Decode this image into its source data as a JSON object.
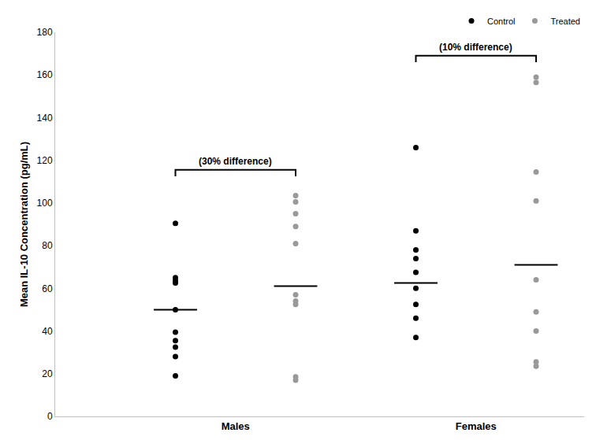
{
  "chart_data": {
    "type": "scatter",
    "y_label": "Mean IL-10 Concentration (pg/mL)",
    "categories": [
      "Males",
      "Females"
    ],
    "series": [
      {
        "name": "Control",
        "color": "#000000",
        "marker": "circle",
        "values": [
          [
            90.5,
            65,
            63.5,
            62.5,
            50,
            39.5,
            35.5,
            32.5,
            28,
            19
          ],
          [
            126,
            87,
            78,
            74,
            67.5,
            60,
            52.5,
            46,
            37
          ]
        ],
        "means": [
          50,
          62.5
        ]
      },
      {
        "name": "Treated",
        "color": "#999999",
        "marker": "circle",
        "values": [
          [
            103.5,
            100.5,
            95,
            89,
            81,
            57,
            54,
            52.5,
            18.5,
            17
          ],
          [
            159,
            156.5,
            114.5,
            101,
            64,
            49,
            40,
            25.5,
            23.5
          ]
        ],
        "means": [
          61,
          71
        ]
      }
    ],
    "annotations": [
      {
        "text": "(30% difference)",
        "category": "Males",
        "y": 115.5
      },
      {
        "text": "(10% difference)",
        "category": "Females",
        "y": 169
      }
    ],
    "ylim": [
      0,
      180
    ],
    "yticks": [
      0,
      20,
      40,
      60,
      80,
      100,
      120,
      140,
      160,
      180
    ],
    "grid": false,
    "legend": "top right"
  }
}
